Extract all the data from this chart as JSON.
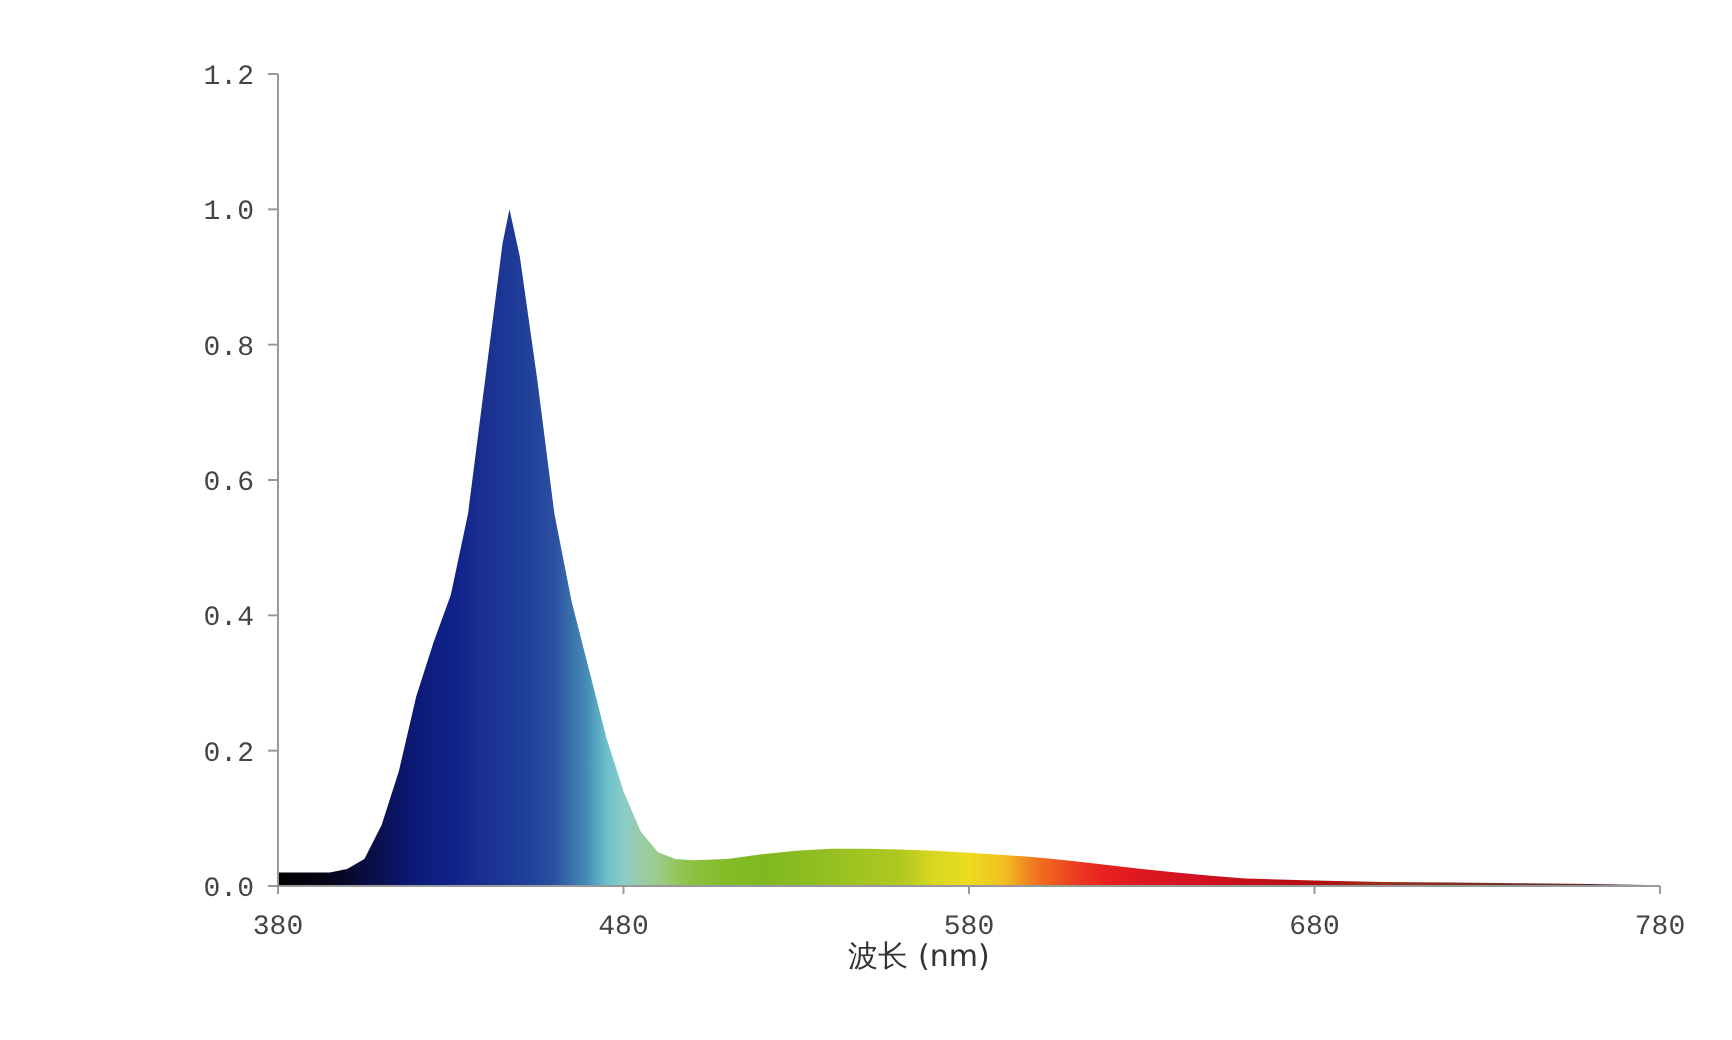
{
  "chart_data": {
    "type": "area",
    "xlabel": "波长 (nm)",
    "x": [
      380,
      395,
      400,
      405,
      410,
      415,
      420,
      425,
      430,
      435,
      440,
      445,
      447,
      450,
      455,
      460,
      465,
      470,
      475,
      480,
      485,
      490,
      495,
      500,
      510,
      520,
      530,
      540,
      550,
      560,
      570,
      580,
      590,
      600,
      610,
      620,
      630,
      640,
      650,
      660,
      680,
      700,
      720,
      740,
      760,
      780
    ],
    "series": [
      {
        "values": [
          0.02,
          0.02,
          0.025,
          0.04,
          0.09,
          0.17,
          0.28,
          0.36,
          0.43,
          0.55,
          0.75,
          0.95,
          1.0,
          0.93,
          0.75,
          0.55,
          0.42,
          0.32,
          0.22,
          0.14,
          0.08,
          0.05,
          0.04,
          0.038,
          0.04,
          0.047,
          0.052,
          0.055,
          0.055,
          0.054,
          0.052,
          0.049,
          0.046,
          0.042,
          0.037,
          0.031,
          0.025,
          0.02,
          0.015,
          0.011,
          0.008,
          0.006,
          0.005,
          0.004,
          0.003,
          0.001
        ],
        "colors": [
          "#000000",
          "#05051a",
          "#08082a",
          "#0a0c40",
          "#0a1050",
          "#0b1566",
          "#0c1a78",
          "#0e1e82",
          "#10218a",
          "#15288e",
          "#1a3090",
          "#1c3694",
          "#1d3896",
          "#1e3c98",
          "#24469c",
          "#2a50a0",
          "#3a70ac",
          "#4a90b8",
          "#6ac0cc",
          "#8cccc8",
          "#98cca8",
          "#9ccc8c",
          "#94c660",
          "#8cc040",
          "#84bc28",
          "#80b820",
          "#88bb20",
          "#94c020",
          "#a4c420",
          "#b0c820",
          "#d8d820",
          "#ecdc20",
          "#f0c020",
          "#f07020",
          "#ec4020",
          "#e82020",
          "#dc1820",
          "#d41420",
          "#d01020",
          "#c41018",
          "#b01010",
          "#983020",
          "#803020",
          "#703028",
          "#602828",
          "#402020"
        ]
      }
    ],
    "xlim": [
      380,
      780
    ],
    "xticks": [
      380,
      480,
      580,
      680,
      780
    ],
    "ylim": [
      0,
      1.2
    ],
    "yticks": [
      {
        "value": 0,
        "label": "0.0"
      },
      {
        "value": 0.2,
        "label": "0.2"
      },
      {
        "value": 0.4,
        "label": "0.4"
      },
      {
        "value": 0.6,
        "label": "0.6"
      },
      {
        "value": 0.8,
        "label": "0.8"
      },
      {
        "value": 1.0,
        "label": "1.0"
      },
      {
        "value": 1.2,
        "label": "1.2"
      }
    ],
    "grid": false
  }
}
